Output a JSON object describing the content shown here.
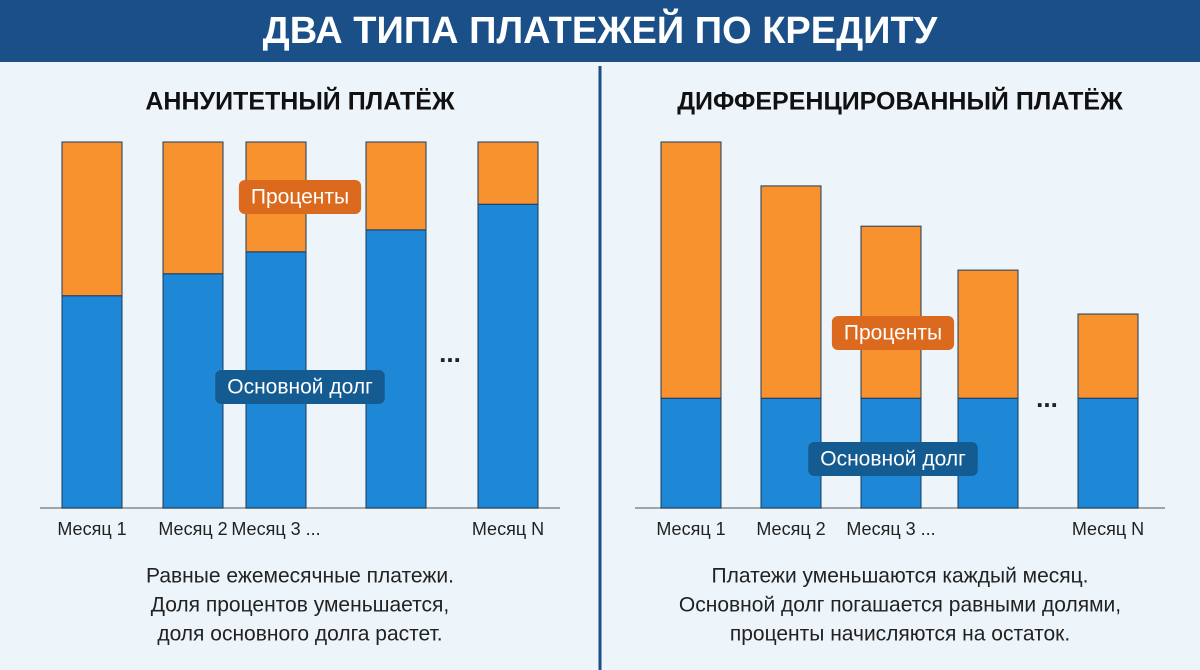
{
  "title": "ДВА ТИПА ПЛАТЕЖЕЙ ПО КРЕДИТУ",
  "chart_data": [
    {
      "type": "bar",
      "stacked": true,
      "title": "АННУИТЕТНЫЙ ПЛАТЁЖ",
      "categories": [
        "Месяц 1",
        "Месяц 2",
        "Месяц 3 ...",
        null,
        "Месяц N"
      ],
      "series": [
        {
          "name": "Основной долг",
          "color": "#1e87d6",
          "values": [
            58,
            64,
            70,
            76,
            83
          ]
        },
        {
          "name": "Проценты",
          "color": "#f7922f",
          "values": [
            42,
            36,
            30,
            24,
            17
          ]
        }
      ],
      "ylim": [
        0,
        100
      ],
      "ellipsis": "...",
      "caption": [
        "Равные ежемесячные платежи.",
        "Доля процентов уменьшается,",
        "доля основного долга растет."
      ]
    },
    {
      "type": "bar",
      "stacked": true,
      "title": "ДИФФЕРЕНЦИРОВАННЫЙ ПЛАТЁЖ",
      "categories": [
        "Месяц 1",
        "Месяц 2",
        "Месяц 3 ...",
        null,
        "Месяц N"
      ],
      "series": [
        {
          "name": "Основной долг",
          "color": "#1e87d6",
          "values": [
            30,
            30,
            30,
            30,
            30
          ]
        },
        {
          "name": "Проценты",
          "color": "#f7922f",
          "values": [
            70,
            58,
            47,
            35,
            23
          ]
        }
      ],
      "ylim": [
        0,
        100
      ],
      "ellipsis": "...",
      "caption": [
        "Платежи уменьшаются каждый месяц.",
        "Основной долг погашается равными долями,",
        "проценты начисляются на остаток."
      ]
    }
  ]
}
